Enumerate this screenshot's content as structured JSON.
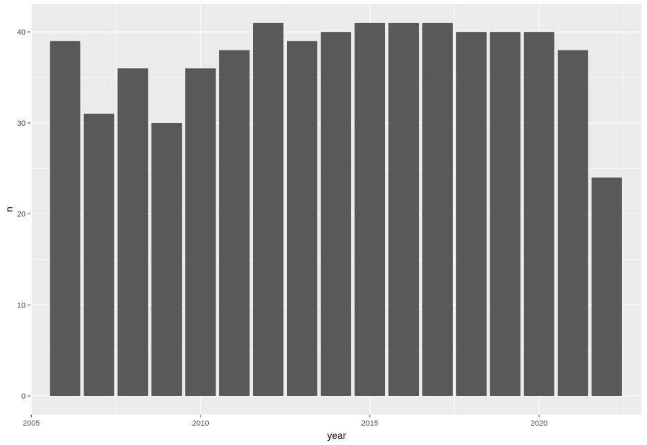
{
  "chart_data": {
    "type": "bar",
    "title": "",
    "xlabel": "year",
    "ylabel": "n",
    "x": [
      2006,
      2007,
      2008,
      2009,
      2010,
      2011,
      2012,
      2013,
      2014,
      2015,
      2016,
      2017,
      2018,
      2019,
      2020,
      2021,
      2022
    ],
    "values": [
      39,
      31,
      36,
      30,
      36,
      38,
      41,
      39,
      40,
      41,
      41,
      41,
      40,
      40,
      40,
      38,
      24
    ],
    "xlim": [
      2004.975,
      2023.025
    ],
    "ylim": [
      -2.05,
      43.05
    ],
    "x_ticks": [
      "2005",
      "2010",
      "2015",
      "2020"
    ],
    "y_ticks": [
      "0",
      "10",
      "20",
      "30",
      "40"
    ],
    "grid": true,
    "legend": "none",
    "colors": {
      "panel_background": "#ebebeb",
      "grid_major": "#ffffff",
      "bar_fill": "#595959",
      "tick_text": "#4d4d4d",
      "tick_mark": "#333333"
    }
  }
}
